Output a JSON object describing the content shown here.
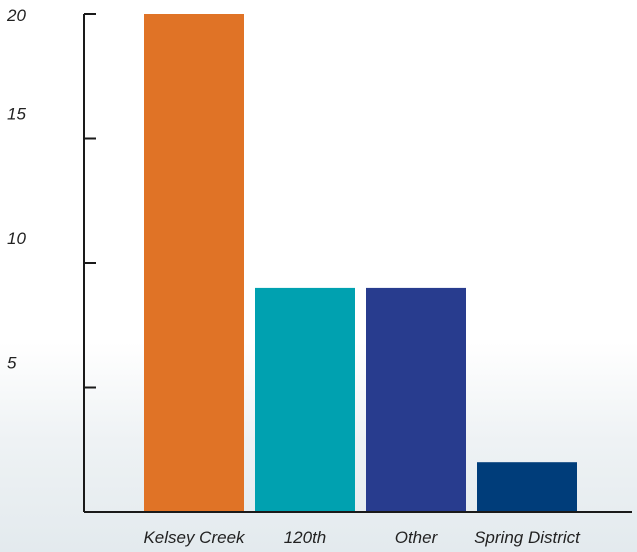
{
  "chart_data": {
    "type": "bar",
    "title": "",
    "xlabel": "",
    "ylabel": "",
    "categories": [
      "Kelsey Creek",
      "120th",
      "Other",
      "Spring District"
    ],
    "values": [
      20,
      9,
      9,
      2
    ],
    "ylim": [
      0,
      20
    ],
    "yticks": [
      5,
      10,
      15,
      20
    ],
    "ytick_labels": [
      "5",
      "10",
      "15",
      "20"
    ],
    "colors": [
      "#e07326",
      "#00a1b0",
      "#283c8e",
      "#003d7a"
    ],
    "grid": false,
    "legend": "none"
  }
}
